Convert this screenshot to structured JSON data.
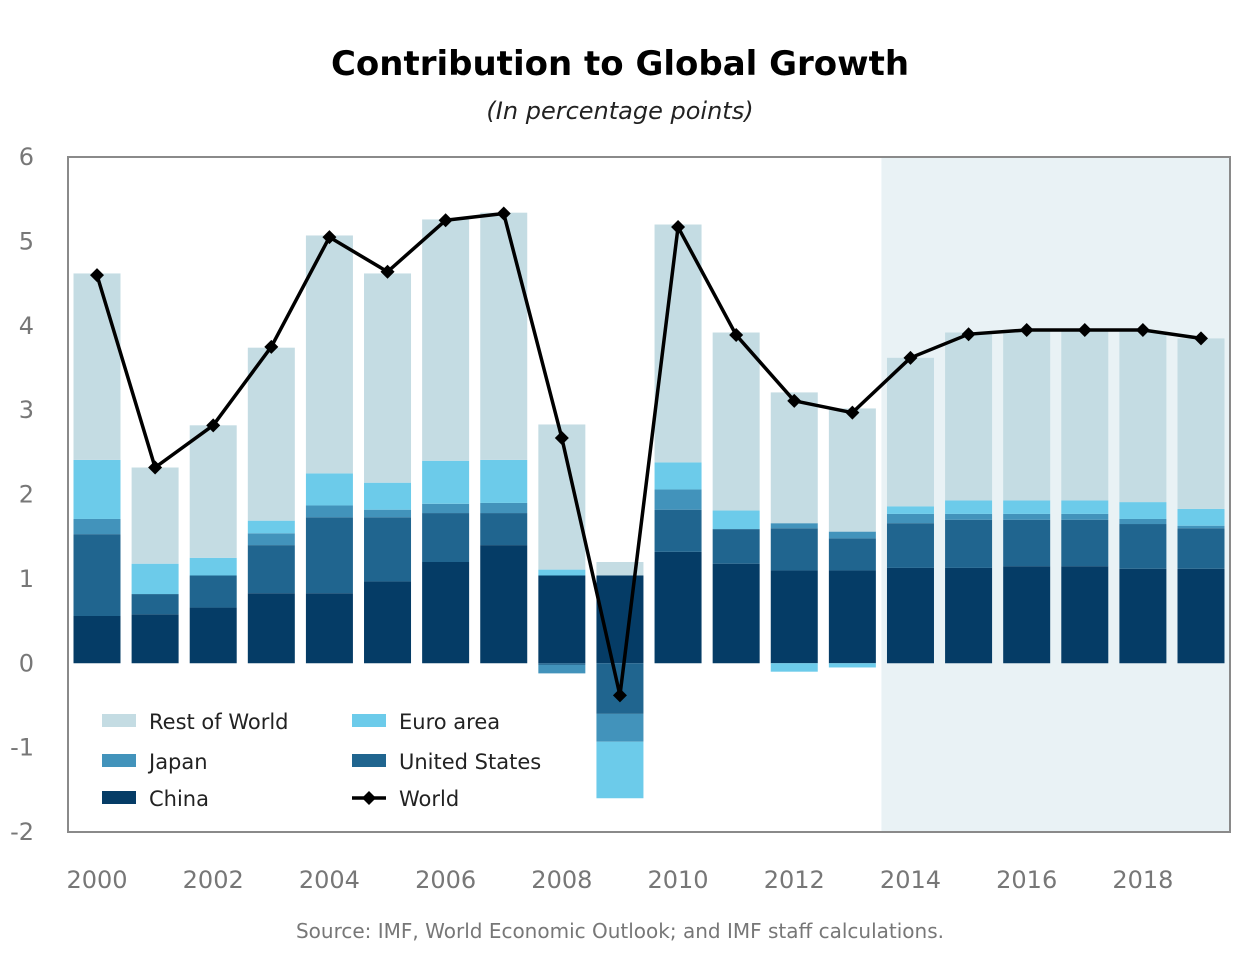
{
  "chart_data": {
    "type": "bar",
    "subtype": "stacked-bar-with-line",
    "title": "Contribution to Global Growth",
    "subtitle": "(In percentage points)",
    "source": "Source: IMF, World Economic Outlook; and IMF staff calculations.",
    "xlabel": "",
    "ylabel": "",
    "ylim": [
      -2,
      6
    ],
    "yticks": [
      "6",
      "5",
      "4",
      "3",
      "2",
      "1",
      "0",
      "-1",
      "-2"
    ],
    "ytick_values": [
      6,
      5,
      4,
      3,
      2,
      1,
      0,
      -1,
      -2
    ],
    "categories": [
      "2000",
      "2001",
      "2002",
      "2003",
      "2004",
      "2005",
      "2006",
      "2007",
      "2008",
      "2009",
      "2010",
      "2011",
      "2012",
      "2013",
      "2014",
      "2015",
      "2016",
      "2017",
      "2018",
      "2019"
    ],
    "xtick_labels": [
      "2000",
      "2002",
      "2004",
      "2006",
      "2008",
      "2010",
      "2012",
      "2014",
      "2016",
      "2018"
    ],
    "projection_start": "2014",
    "grid": false,
    "legend_position": "bottom-left",
    "series": [
      {
        "name": "China",
        "kind": "bar",
        "color": "#053c66",
        "values": [
          0.56,
          0.58,
          0.66,
          0.83,
          0.83,
          0.97,
          1.2,
          1.4,
          1.04,
          1.04,
          1.32,
          1.18,
          1.1,
          1.1,
          1.13,
          1.13,
          1.15,
          1.15,
          1.12,
          1.12
        ]
      },
      {
        "name": "United States",
        "kind": "bar",
        "color": "#20658f",
        "values": [
          0.97,
          0.24,
          0.38,
          0.57,
          0.9,
          0.76,
          0.58,
          0.38,
          -0.02,
          -0.6,
          0.5,
          0.41,
          0.5,
          0.38,
          0.53,
          0.57,
          0.55,
          0.55,
          0.53,
          0.48
        ]
      },
      {
        "name": "Japan",
        "kind": "bar",
        "color": "#4293bb",
        "values": [
          0.18,
          0.0,
          0.0,
          0.14,
          0.14,
          0.09,
          0.11,
          0.12,
          -0.1,
          -0.33,
          0.24,
          0.0,
          0.06,
          0.08,
          0.11,
          0.07,
          0.07,
          0.07,
          0.06,
          0.03
        ]
      },
      {
        "name": "Euro area",
        "kind": "bar",
        "color": "#6ccbea",
        "values": [
          0.7,
          0.36,
          0.21,
          0.15,
          0.38,
          0.32,
          0.51,
          0.51,
          0.07,
          -0.67,
          0.32,
          0.22,
          -0.1,
          -0.05,
          0.09,
          0.16,
          0.16,
          0.16,
          0.2,
          0.2
        ]
      },
      {
        "name": "Rest of World",
        "kind": "bar",
        "color": "#c4dce3",
        "values": [
          2.21,
          1.14,
          1.57,
          2.05,
          2.82,
          2.48,
          2.86,
          2.93,
          1.72,
          0.16,
          2.82,
          2.11,
          1.55,
          1.46,
          1.76,
          1.99,
          2.02,
          2.02,
          2.02,
          2.02
        ]
      },
      {
        "name": "World",
        "kind": "line",
        "color": "#000000",
        "values": [
          4.6,
          2.32,
          2.82,
          3.75,
          5.05,
          4.64,
          5.25,
          5.33,
          2.67,
          -0.38,
          5.17,
          3.89,
          3.11,
          2.97,
          3.62,
          3.9,
          3.95,
          3.95,
          3.95,
          3.85
        ]
      }
    ],
    "legend": [
      {
        "label": "Rest of World",
        "color": "#c4dce3",
        "kind": "swatch"
      },
      {
        "label": "Euro area",
        "color": "#6ccbea",
        "kind": "swatch"
      },
      {
        "label": "Japan",
        "color": "#4293bb",
        "kind": "swatch"
      },
      {
        "label": "United States",
        "color": "#20658f",
        "kind": "swatch"
      },
      {
        "label": "China",
        "color": "#053c66",
        "kind": "swatch"
      },
      {
        "label": "World",
        "color": "#000000",
        "kind": "line-marker"
      }
    ],
    "colors": {
      "projection_shade": "#e9f2f5",
      "frame": "#8a8a8a",
      "tick_text": "#777777"
    }
  }
}
